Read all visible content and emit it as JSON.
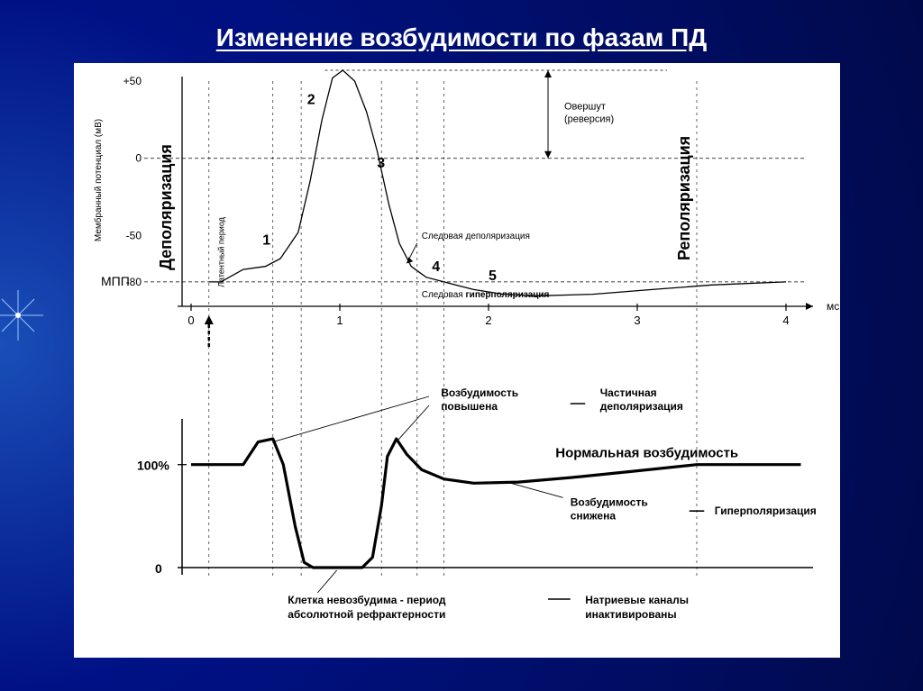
{
  "title": "Изменение возбудимости по фазам ПД",
  "background_center": "#1a4fb8",
  "background_mid": "#001185",
  "background_edge": "#000a4a",
  "panel_bg": "#ffffff",
  "title_color": "#ffffff",
  "title_fontsize": 28,
  "title_weight": 700,
  "chart1": {
    "type": "line",
    "ylabel": "Мембранный потенциал (мВ)",
    "ylabel_fontsize": 10,
    "xlabel": "мс",
    "xlabel_fontsize": 12,
    "yticks": [
      -80,
      -50,
      0,
      50
    ],
    "ytick_labels": [
      "-80",
      "-50",
      "0",
      "+50"
    ],
    "xticks": [
      0,
      1,
      2,
      3,
      4
    ],
    "mpp_label": "МПП",
    "mpp_value": -80,
    "left_rotated_label": "Деполяризация",
    "left_rotated_fontsize": 18,
    "right_rotated_label": "Реполяризация",
    "right_rotated_fontsize": 18,
    "latent_label": "Латентный период",
    "latent_fontsize": 9,
    "overshoot_label_1": "Овершут",
    "overshoot_label_2": "(реверсия)",
    "overshoot_fontsize": 11,
    "trace_depol_label": "Следовая деполяризация",
    "trace_depol_fontsize": 10,
    "trace_hyper_label_1": "Следовая",
    "trace_hyper_label_2": "гиперполяризация",
    "trace_hyper_fontsize": 10,
    "phase_numbers": [
      "1",
      "2",
      "3",
      "4",
      "5"
    ],
    "phase_fontsize": 16,
    "ap_points": [
      [
        0.12,
        -80
      ],
      [
        0.2,
        -80
      ],
      [
        0.35,
        -72
      ],
      [
        0.5,
        -70
      ],
      [
        0.6,
        -65
      ],
      [
        0.72,
        -48
      ],
      [
        0.8,
        -15
      ],
      [
        0.88,
        25
      ],
      [
        0.95,
        52
      ],
      [
        1.02,
        57
      ],
      [
        1.1,
        50
      ],
      [
        1.18,
        30
      ],
      [
        1.25,
        5
      ],
      [
        1.33,
        -30
      ],
      [
        1.4,
        -55
      ],
      [
        1.48,
        -70
      ],
      [
        1.58,
        -77
      ],
      [
        1.7,
        -80
      ],
      [
        1.9,
        -85
      ],
      [
        2.1,
        -88
      ],
      [
        2.35,
        -89
      ],
      [
        2.7,
        -88
      ],
      [
        3.1,
        -85
      ],
      [
        3.5,
        -82
      ],
      [
        4.0,
        -80
      ]
    ],
    "ap_stroke": "#000000",
    "ap_stroke_width": 1.3,
    "grid_dash": "4,3",
    "grid_color": "#000000",
    "vlines": [
      0.12,
      0.55,
      0.74,
      1.28,
      1.52,
      1.7,
      3.4
    ],
    "axis_color": "#000000"
  },
  "chart2": {
    "type": "line",
    "ytick_labels": [
      "0",
      "100%"
    ],
    "ytick_fontsize": 14,
    "curve_points": [
      [
        0.0,
        100
      ],
      [
        0.35,
        100
      ],
      [
        0.45,
        122
      ],
      [
        0.55,
        125
      ],
      [
        0.62,
        100
      ],
      [
        0.7,
        40
      ],
      [
        0.76,
        5
      ],
      [
        0.82,
        0
      ],
      [
        1.15,
        0
      ],
      [
        1.22,
        10
      ],
      [
        1.28,
        60
      ],
      [
        1.32,
        108
      ],
      [
        1.38,
        125
      ],
      [
        1.45,
        110
      ],
      [
        1.55,
        95
      ],
      [
        1.7,
        86
      ],
      [
        1.9,
        82
      ],
      [
        2.2,
        83
      ],
      [
        2.6,
        88
      ],
      [
        3.0,
        94
      ],
      [
        3.4,
        100
      ],
      [
        4.1,
        100
      ]
    ],
    "curve_stroke": "#000000",
    "curve_stroke_width": 3.2,
    "high_excite_1": "Возбудимость",
    "high_excite_2": "повышена",
    "high_excite_fontsize": 12,
    "partial_depol_1": "Частичная",
    "partial_depol_2": "деполяризация",
    "partial_depol_fontsize": 12,
    "normal_excite": "Нормальная возбудимость",
    "normal_excite_fontsize": 15,
    "normal_excite_weight": 700,
    "low_excite_1": "Возбудимость",
    "low_excite_2": "снижена",
    "low_excite_fontsize": 12,
    "hyperpol": "Гиперполяризация",
    "hyperpol_fontsize": 12,
    "absolute_1": "Клетка невозбудима - период",
    "absolute_2": "абсолютной рефрактерности",
    "absolute_fontsize": 12,
    "na_inact_1": "Натриевые каналы",
    "na_inact_2": "инактивированы",
    "na_inact_fontsize": 12
  },
  "font_family": "Arial"
}
